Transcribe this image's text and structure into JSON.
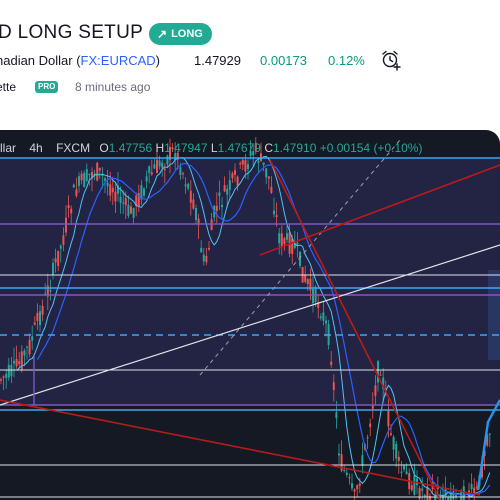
{
  "header": {
    "title": "D LONG SETUP",
    "badge_label": "LONG",
    "symbol_prefix": "nadian Dollar (",
    "symbol_code": "FX:EURCAD",
    "symbol_suffix": ")",
    "price": "1.47929",
    "change": "0.00173",
    "change_pct": "0.12%",
    "author": "ette",
    "author_badge": "PRO",
    "published": "8 minutes ago"
  },
  "legend": {
    "symbol": "llar",
    "interval": "4h",
    "exchange": "FXCM",
    "o_label": "O",
    "o_value": "1.47756",
    "h_label": "H",
    "h_value": "1.47947",
    "l_label": "L",
    "l_value": "1.47679",
    "c_label": "C",
    "c_value": "1.47910",
    "change": "+0.00154 (+0.10%)"
  },
  "colors": {
    "up": "#26a69a",
    "down": "#ef5350",
    "accent": "#22ab94",
    "link": "#2962ff",
    "background": "#151924"
  },
  "icons": {
    "badge": "arrow-up-right-icon",
    "alert": "alarm-clock-add-icon"
  }
}
